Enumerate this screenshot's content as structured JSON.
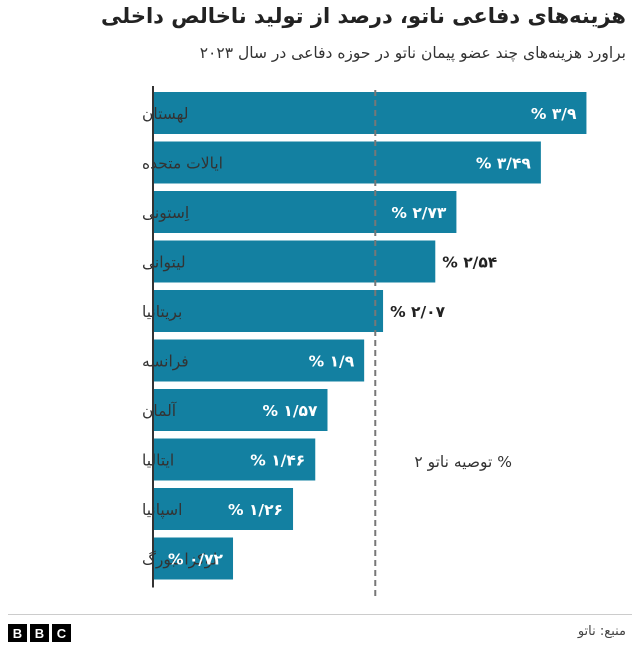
{
  "header": {
    "title": "هزینه‌های دفاعی ناتو، درصد از تولید ناخالص داخلی",
    "subtitle": "براورد هزینه‌های چند عضو پیمان ناتو در  حوزه دفاعی در سال ۲۰۲۳"
  },
  "footer": {
    "logo_letters": [
      "B",
      "B",
      "C"
    ],
    "source": "منبع: ناتو"
  },
  "colors": {
    "bar": "#1380A1",
    "bar_label_inside": "#ffffff",
    "bar_label_outside": "#222222",
    "reference_line": "#777777"
  },
  "chart_data": {
    "type": "bar",
    "orientation": "horizontal",
    "categories": [
      "لهستان",
      "ایالات متحده",
      "اِستونی",
      "لیتوانی",
      "بریتانیا",
      "فرانسه",
      "آلمان",
      "ایتالیا",
      "اسپانیا",
      "لوکزامبورگ"
    ],
    "values": [
      3.9,
      3.49,
      2.73,
      2.54,
      2.07,
      1.9,
      1.57,
      1.46,
      1.26,
      0.72
    ],
    "value_labels": [
      "% ۳/۹",
      "% ۳/۴۹",
      "% ۲/۷۳",
      "% ۲/۵۴",
      "% ۲/۰۷",
      "% ۱/۹",
      "% ۱/۵۷",
      "% ۱/۴۶",
      "% ۱/۲۶",
      "% ۰/۷۲"
    ],
    "label_outside": [
      false,
      false,
      false,
      true,
      true,
      false,
      false,
      false,
      false,
      false
    ],
    "xlim": [
      0,
      3.95
    ],
    "reference": {
      "value": 2,
      "label": "توصیه ناتو  ۲ %"
    },
    "grid": false,
    "legend": "none"
  }
}
